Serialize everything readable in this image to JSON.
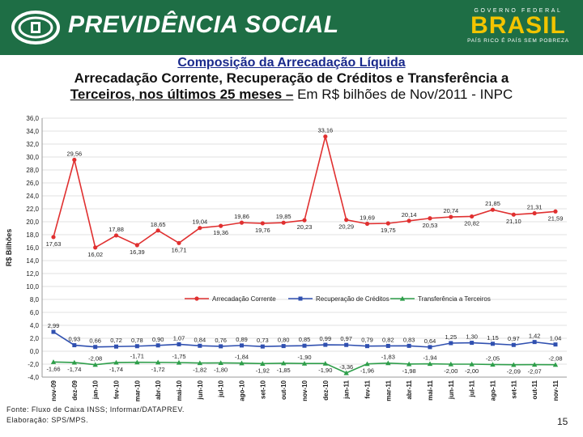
{
  "header": {
    "title": "PREVIDÊNCIA SOCIAL",
    "gov_top": "GOVERNO FEDERAL",
    "gov_brand": "BRASIL",
    "gov_tagline": "PAÍS RICO É PAÍS SEM POBREZA"
  },
  "heading": {
    "main": "Composição da Arrecadação Líquida",
    "line2": "Arrecadação Corrente, Recuperação de Créditos e Transferência a",
    "line3_bold": "Terceiros, nos últimos 25 meses –",
    "line3_normal": " Em R$ bilhões de Nov/2011 - INPC"
  },
  "footer": {
    "source": "Fonte: Fluxo de Caixa INSS; Informar/DATAPREV.",
    "elaboration": "Elaboração: SPS/MPS."
  },
  "page_number": "15",
  "colors": {
    "banner": "#1e6e45",
    "series_corrente": "#e03030",
    "series_recuperacao": "#3050b0",
    "series_transferencia": "#2e9e4a"
  },
  "chart_data": {
    "type": "line",
    "title": "",
    "xlabel": "",
    "ylabel": "R$ Bilhões",
    "ylim": [
      -4.0,
      36.0
    ],
    "ytick_step": 2,
    "ytick_labels": [
      "-4,0",
      "-2,0",
      "0,0",
      "2,0",
      "4,0",
      "6,0",
      "8,0",
      "10,0",
      "12,0",
      "14,0",
      "16,0",
      "18,0",
      "20,0",
      "22,0",
      "24,0",
      "26,0",
      "28,0",
      "30,0",
      "32,0",
      "34,0",
      "36,0"
    ],
    "grid": true,
    "legend_position": "bottom",
    "categories": [
      "nov-09",
      "dez-09",
      "jan-10",
      "fev-10",
      "mar-10",
      "abr-10",
      "mai-10",
      "jun-10",
      "jul-10",
      "ago-10",
      "set-10",
      "out-10",
      "nov-10",
      "dez-10",
      "jan-11",
      "fev-11",
      "mar-11",
      "abr-11",
      "mai-11",
      "jun-11",
      "jul-11",
      "ago-11",
      "set-11",
      "out-11",
      "nov-11"
    ],
    "series": [
      {
        "name": "Arrecadação Corrente",
        "values": [
          17.63,
          29.56,
          16.02,
          17.88,
          16.39,
          18.65,
          16.71,
          19.04,
          19.36,
          19.86,
          19.76,
          19.85,
          20.23,
          33.16,
          20.29,
          19.69,
          19.75,
          20.14,
          20.53,
          20.74,
          20.82,
          21.85,
          21.1,
          21.31,
          21.59
        ],
        "labels": [
          "17,63",
          "29,56",
          "16,02",
          "17,88",
          "16,39",
          "18,65",
          "16,71",
          "19,04",
          "19,36",
          "19,86",
          "19,76",
          "19,85",
          "20,23",
          "33,16",
          "20,29",
          "19,69",
          "19,75",
          "20,14",
          "20,53",
          "20,74",
          "20,82",
          "21,85",
          "21,10",
          "21,31",
          "21,59"
        ],
        "label_pos": [
          "below",
          "above",
          "below",
          "above",
          "below",
          "above",
          "below",
          "above",
          "below",
          "above",
          "below",
          "above",
          "below",
          "above",
          "below",
          "above",
          "below",
          "above",
          "below",
          "above",
          "below",
          "above",
          "below",
          "above",
          "below"
        ]
      },
      {
        "name": "Recuperação de Créditos",
        "values": [
          2.99,
          0.93,
          0.66,
          0.72,
          0.78,
          0.9,
          1.07,
          0.84,
          0.76,
          0.89,
          0.73,
          0.8,
          0.85,
          0.99,
          0.97,
          0.79,
          0.82,
          0.83,
          0.64,
          1.25,
          1.3,
          1.15,
          0.97,
          1.42,
          1.04
        ],
        "labels": [
          "2,99",
          "0,93",
          "0,66",
          "0,72",
          "0,78",
          "0,90",
          "1,07",
          "0,84",
          "0,76",
          "0,89",
          "0,73",
          "0,80",
          "0,85",
          "0,99",
          "0,97",
          "0,79",
          "0,82",
          "0,83",
          "0,64",
          "1,25",
          "1,30",
          "1,15",
          "0,97",
          "1,42",
          "1,04"
        ],
        "label_pos": [
          "above",
          "above",
          "above",
          "above",
          "above",
          "above",
          "above",
          "above",
          "above",
          "above",
          "above",
          "above",
          "above",
          "above",
          "above",
          "above",
          "above",
          "above",
          "above",
          "above",
          "above",
          "above",
          "above",
          "above",
          "above"
        ]
      },
      {
        "name": "Transferência a Terceiros",
        "values": [
          -1.66,
          -1.74,
          -2.08,
          -1.74,
          -1.71,
          -1.72,
          -1.75,
          -1.82,
          -1.8,
          -1.84,
          -1.92,
          -1.85,
          -1.9,
          -1.9,
          -3.36,
          -1.96,
          -1.83,
          -1.98,
          -1.94,
          -2.0,
          -2.0,
          -2.05,
          -2.09,
          -2.07,
          -2.08
        ],
        "labels": [
          "-1,66",
          "-1,74",
          "-2,08",
          "-1,74",
          "-1,71",
          "-1,72",
          "-1,75",
          "-1,82",
          "-1,80",
          "-1,84",
          "-1,92",
          "-1,85",
          "-1,90",
          "-1,90",
          "-3,36",
          "-1,96",
          "-1,83",
          "-1,98",
          "-1,94",
          "-2,00",
          "-2,00",
          "-2,05",
          "-2,09",
          "-2,07",
          "-2,08"
        ],
        "label_pos": [
          "below",
          "below",
          "above",
          "below",
          "above",
          "below",
          "above",
          "below",
          "below",
          "above",
          "below",
          "below",
          "above",
          "below",
          "above",
          "below",
          "above",
          "below",
          "above",
          "below",
          "below",
          "above",
          "below",
          "below",
          "above"
        ]
      }
    ]
  }
}
